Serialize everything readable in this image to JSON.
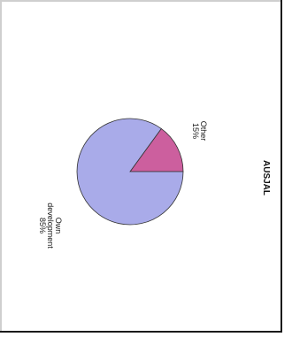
{
  "chart_data": {
    "type": "pie",
    "title": "AUSJAL",
    "slices": [
      {
        "label": "Own development",
        "value": 85,
        "value_label": "85%",
        "color": "#a9abe9"
      },
      {
        "label": "Other",
        "value": 15,
        "value_label": "15%",
        "color": "#cc5f9e"
      }
    ],
    "orientation": "rotated 90° clockwise",
    "outline_color": "#333333"
  }
}
